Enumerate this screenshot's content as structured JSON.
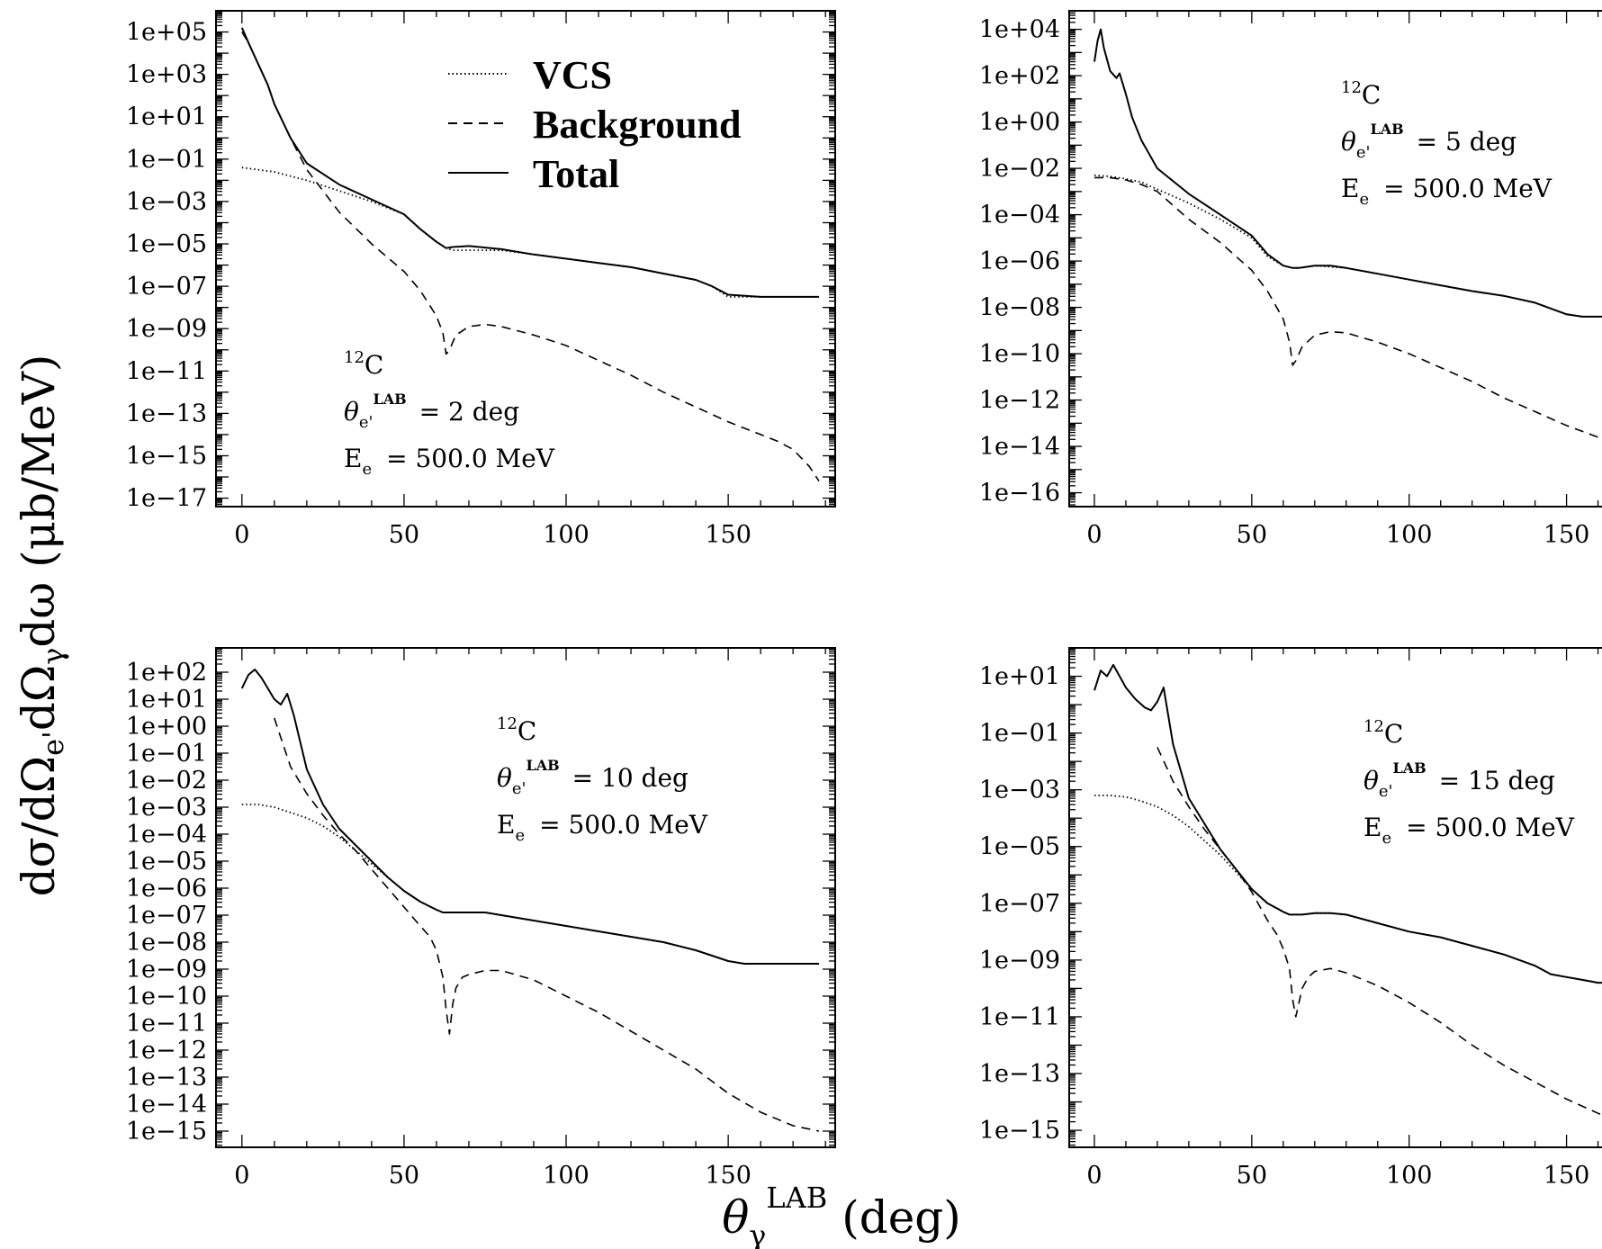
{
  "figure": {
    "ylabel_parts": [
      "dσ/dΩ",
      "e'",
      "dΩ",
      "γ",
      "dω (μb/MeV)"
    ],
    "xlabel_parts": [
      "θ",
      "γ",
      "LAB",
      " (deg)"
    ]
  },
  "legend": [
    {
      "label": "VCS",
      "style": "dotted"
    },
    {
      "label": "Background",
      "style": "dashed"
    },
    {
      "label": "Total",
      "style": "solid"
    }
  ],
  "chart_data": [
    {
      "type": "line",
      "title": "",
      "log_y": true,
      "xlim": [
        -8,
        183
      ],
      "xticks": [
        0,
        50,
        100,
        150
      ],
      "ylim_exp": [
        -17.4,
        6.0
      ],
      "ytick_exps": [
        5,
        3,
        1,
        -1,
        -3,
        -5,
        -7,
        -9,
        -11,
        -13,
        -15,
        -17
      ],
      "annotation": {
        "nucleus_mass": "12",
        "nucleus": "C",
        "theta_symbol": "θ",
        "theta_sub": "e'",
        "theta_sup": "LAB",
        "theta_value": "= 2 deg",
        "energy_symbol": "E",
        "energy_sub": "e",
        "energy_value": "= 500.0 MeV"
      },
      "series": [
        {
          "name": "VCS",
          "style": "dotted",
          "x": [
            0,
            5,
            10,
            15,
            20,
            30,
            40,
            50,
            55,
            60,
            63,
            65,
            70,
            80,
            90,
            100,
            110,
            120,
            130,
            140,
            145,
            150,
            160,
            170,
            175,
            178
          ],
          "y_exp": [
            -1.4,
            -1.5,
            -1.6,
            -1.8,
            -2.0,
            -2.5,
            -3.0,
            -3.6,
            -4.3,
            -4.9,
            -5.2,
            -5.3,
            -5.3,
            -5.3,
            -5.5,
            -5.7,
            -5.9,
            -6.1,
            -6.4,
            -6.7,
            -7.0,
            -7.5,
            -7.5,
            -7.5,
            -7.5,
            -7.5
          ]
        },
        {
          "name": "Background",
          "style": "dashed",
          "x": [
            0,
            2,
            5,
            8,
            10,
            15,
            20,
            25,
            30,
            40,
            50,
            55,
            60,
            62,
            63,
            64,
            66,
            70,
            75,
            80,
            90,
            100,
            110,
            120,
            130,
            140,
            150,
            160,
            165,
            170,
            175,
            178
          ],
          "y_exp": [
            5.0,
            4.5,
            3.5,
            2.5,
            1.6,
            0.0,
            -1.5,
            -2.5,
            -3.5,
            -5.0,
            -6.3,
            -7.2,
            -8.4,
            -9.2,
            -10.2,
            -10.0,
            -9.3,
            -8.9,
            -8.8,
            -8.9,
            -9.3,
            -9.8,
            -10.5,
            -11.2,
            -12.0,
            -12.7,
            -13.4,
            -14.0,
            -14.3,
            -14.7,
            -15.5,
            -16.2
          ]
        },
        {
          "name": "Total",
          "style": "solid",
          "x": [
            0,
            2,
            5,
            8,
            10,
            15,
            20,
            30,
            40,
            50,
            55,
            60,
            63,
            65,
            70,
            80,
            90,
            100,
            110,
            120,
            130,
            140,
            145,
            150,
            160,
            170,
            175,
            178
          ],
          "y_exp": [
            5.2,
            4.5,
            3.5,
            2.5,
            1.6,
            0.0,
            -1.2,
            -2.2,
            -2.9,
            -3.6,
            -4.3,
            -4.9,
            -5.2,
            -5.15,
            -5.1,
            -5.25,
            -5.5,
            -5.7,
            -5.9,
            -6.1,
            -6.4,
            -6.7,
            -7.0,
            -7.4,
            -7.5,
            -7.5,
            -7.5,
            -7.5
          ]
        }
      ]
    },
    {
      "type": "line",
      "title": "",
      "log_y": true,
      "xlim": [
        -8,
        183
      ],
      "xticks": [
        0,
        50,
        100,
        150
      ],
      "ylim_exp": [
        -16.6,
        4.8
      ],
      "ytick_exps": [
        4,
        2,
        0,
        -2,
        -4,
        -6,
        -8,
        -10,
        -12,
        -14,
        -16
      ],
      "annotation": {
        "nucleus_mass": "12",
        "nucleus": "C",
        "theta_symbol": "θ",
        "theta_sub": "e'",
        "theta_sup": "LAB",
        "theta_value": "= 5 deg",
        "energy_symbol": "E",
        "energy_sub": "e",
        "energy_value": "= 500.0 MeV"
      },
      "series": [
        {
          "name": "VCS",
          "style": "dotted",
          "x": [
            0,
            5,
            10,
            15,
            20,
            30,
            40,
            50,
            55,
            60,
            63,
            65,
            70,
            75,
            80,
            90,
            100,
            110,
            120,
            130,
            140,
            150,
            155,
            160,
            170,
            178
          ],
          "y_exp": [
            -2.3,
            -2.35,
            -2.45,
            -2.6,
            -2.9,
            -3.5,
            -4.2,
            -5.0,
            -5.8,
            -6.2,
            -6.3,
            -6.3,
            -6.2,
            -6.25,
            -6.3,
            -6.55,
            -6.8,
            -7.05,
            -7.3,
            -7.5,
            -7.8,
            -8.3,
            -8.4,
            -8.4,
            -8.4,
            -8.4
          ]
        },
        {
          "name": "Background",
          "style": "dashed",
          "x": [
            0,
            5,
            10,
            15,
            20,
            25,
            30,
            40,
            50,
            55,
            60,
            62,
            63,
            64,
            66,
            70,
            75,
            80,
            90,
            100,
            110,
            120,
            130,
            140,
            150,
            160,
            170,
            178
          ],
          "y_exp": [
            -2.4,
            -2.4,
            -2.5,
            -2.7,
            -3.0,
            -3.6,
            -4.2,
            -5.2,
            -6.4,
            -7.3,
            -8.5,
            -9.5,
            -10.5,
            -10.3,
            -9.7,
            -9.2,
            -9.05,
            -9.1,
            -9.5,
            -10.0,
            -10.6,
            -11.2,
            -11.9,
            -12.5,
            -13.1,
            -13.6,
            -14.3,
            -14.8
          ]
        },
        {
          "name": "Total",
          "style": "solid",
          "x": [
            0,
            1,
            2,
            3,
            5,
            7,
            8,
            10,
            12,
            15,
            20,
            30,
            40,
            50,
            55,
            60,
            63,
            65,
            70,
            75,
            80,
            90,
            100,
            110,
            120,
            130,
            140,
            150,
            155,
            160,
            170,
            178
          ],
          "y_exp": [
            2.6,
            3.5,
            4.0,
            3.2,
            2.2,
            1.9,
            2.1,
            1.2,
            0.2,
            -0.8,
            -2.0,
            -3.1,
            -4.0,
            -4.9,
            -5.7,
            -6.2,
            -6.3,
            -6.3,
            -6.2,
            -6.2,
            -6.3,
            -6.55,
            -6.8,
            -7.05,
            -7.3,
            -7.5,
            -7.8,
            -8.3,
            -8.4,
            -8.4,
            -8.4,
            -8.4
          ]
        }
      ]
    },
    {
      "type": "line",
      "title": "",
      "log_y": true,
      "xlim": [
        -8,
        183
      ],
      "xticks": [
        0,
        50,
        100,
        150
      ],
      "ylim_exp": [
        -15.6,
        2.9
      ],
      "ytick_exps": [
        2,
        1,
        0,
        -1,
        -2,
        -3,
        -4,
        -5,
        -6,
        -7,
        -8,
        -9,
        -10,
        -11,
        -12,
        -13,
        -14,
        -15
      ],
      "annotation": {
        "nucleus_mass": "12",
        "nucleus": "C",
        "theta_symbol": "θ",
        "theta_sub": "e'",
        "theta_sup": "LAB",
        "theta_value": "= 10 deg",
        "energy_symbol": "E",
        "energy_sub": "e",
        "energy_value": "= 500.0 MeV"
      },
      "series": [
        {
          "name": "VCS",
          "style": "dotted",
          "x": [
            0,
            5,
            10,
            15,
            20,
            25,
            30,
            35,
            40,
            45,
            50,
            55,
            60,
            62,
            64,
            66,
            70,
            75,
            80,
            90,
            100,
            110,
            120,
            130,
            140,
            145,
            150,
            155,
            160,
            170,
            178
          ],
          "y_exp": [
            -2.9,
            -2.9,
            -3.0,
            -3.2,
            -3.4,
            -3.7,
            -4.1,
            -4.6,
            -5.1,
            -5.6,
            -6.1,
            -6.5,
            -6.8,
            -6.9,
            -6.9,
            -6.9,
            -6.9,
            -6.9,
            -7.0,
            -7.2,
            -7.4,
            -7.6,
            -7.8,
            -8.0,
            -8.3,
            -8.5,
            -8.7,
            -8.8,
            -8.8,
            -8.8,
            -8.8
          ]
        },
        {
          "name": "Background",
          "style": "dashed",
          "x": [
            10,
            15,
            20,
            25,
            30,
            35,
            40,
            45,
            50,
            55,
            58,
            60,
            62,
            63,
            64,
            65,
            66,
            68,
            70,
            75,
            80,
            90,
            100,
            110,
            120,
            130,
            140,
            150,
            160,
            170,
            178
          ],
          "y_exp": [
            0.3,
            -1.5,
            -2.5,
            -3.3,
            -4.0,
            -4.6,
            -5.3,
            -6.0,
            -6.7,
            -7.4,
            -7.8,
            -8.3,
            -9.3,
            -10.5,
            -11.4,
            -10.3,
            -9.7,
            -9.3,
            -9.2,
            -9.05,
            -9.05,
            -9.4,
            -10.0,
            -10.6,
            -11.3,
            -12.0,
            -12.7,
            -13.6,
            -14.3,
            -14.8,
            -15.0
          ]
        },
        {
          "name": "Total",
          "style": "solid",
          "x": [
            0,
            2,
            4,
            6,
            8,
            10,
            12,
            14,
            16,
            18,
            20,
            25,
            30,
            35,
            40,
            45,
            50,
            55,
            60,
            62,
            64,
            66,
            70,
            75,
            80,
            90,
            100,
            110,
            120,
            130,
            140,
            145,
            150,
            155,
            160,
            170,
            178
          ],
          "y_exp": [
            1.4,
            1.9,
            2.1,
            1.8,
            1.4,
            1.0,
            0.8,
            1.2,
            0.4,
            -0.6,
            -1.6,
            -2.9,
            -3.8,
            -4.4,
            -5.0,
            -5.6,
            -6.1,
            -6.5,
            -6.8,
            -6.9,
            -6.9,
            -6.9,
            -6.9,
            -6.9,
            -7.0,
            -7.2,
            -7.4,
            -7.6,
            -7.8,
            -8.0,
            -8.3,
            -8.5,
            -8.7,
            -8.8,
            -8.8,
            -8.8,
            -8.8
          ]
        }
      ]
    },
    {
      "type": "line",
      "title": "",
      "log_y": true,
      "xlim": [
        -8,
        183
      ],
      "xticks": [
        0,
        50,
        100,
        150
      ],
      "ylim_exp": [
        -15.6,
        2.0
      ],
      "ytick_exps": [
        1,
        -1,
        -3,
        -5,
        -7,
        -9,
        -11,
        -13,
        -15
      ],
      "annotation": {
        "nucleus_mass": "12",
        "nucleus": "C",
        "theta_symbol": "θ",
        "theta_sub": "e'",
        "theta_sup": "LAB",
        "theta_value": "= 15 deg",
        "energy_symbol": "E",
        "energy_sub": "e",
        "energy_value": "= 500.0 MeV"
      },
      "series": [
        {
          "name": "VCS",
          "style": "dotted",
          "x": [
            0,
            5,
            10,
            15,
            20,
            25,
            30,
            35,
            40,
            45,
            50,
            55,
            60,
            62,
            64,
            66,
            70,
            75,
            80,
            90,
            100,
            110,
            120,
            130,
            140,
            145,
            150,
            155,
            160,
            170,
            178
          ],
          "y_exp": [
            -3.2,
            -3.2,
            -3.25,
            -3.4,
            -3.6,
            -3.9,
            -4.3,
            -4.8,
            -5.3,
            -5.9,
            -6.5,
            -7.0,
            -7.3,
            -7.4,
            -7.4,
            -7.4,
            -7.35,
            -7.35,
            -7.4,
            -7.7,
            -8.0,
            -8.2,
            -8.5,
            -8.8,
            -9.2,
            -9.5,
            -9.6,
            -9.7,
            -9.8,
            -9.8,
            -9.8
          ]
        },
        {
          "name": "Background",
          "style": "dashed",
          "x": [
            20,
            25,
            30,
            35,
            40,
            45,
            50,
            55,
            58,
            60,
            62,
            63,
            64,
            65,
            66,
            68,
            70,
            75,
            80,
            90,
            100,
            110,
            120,
            130,
            140,
            150,
            160,
            170,
            178
          ],
          "y_exp": [
            -1.5,
            -2.7,
            -3.6,
            -4.4,
            -5.1,
            -5.8,
            -6.6,
            -7.6,
            -8.1,
            -8.6,
            -9.3,
            -10.4,
            -11.0,
            -10.5,
            -10.0,
            -9.6,
            -9.4,
            -9.3,
            -9.45,
            -9.9,
            -10.5,
            -11.2,
            -12.0,
            -12.7,
            -13.3,
            -13.9,
            -14.4,
            -14.8,
            -15.0
          ]
        },
        {
          "name": "Total",
          "style": "solid",
          "x": [
            0,
            2,
            4,
            6,
            8,
            10,
            13,
            16,
            18,
            20,
            22,
            25,
            30,
            35,
            40,
            45,
            50,
            55,
            60,
            62,
            64,
            66,
            70,
            75,
            80,
            90,
            100,
            110,
            120,
            130,
            140,
            145,
            150,
            155,
            160,
            170,
            178
          ],
          "y_exp": [
            0.5,
            1.2,
            1.0,
            1.4,
            1.0,
            0.6,
            0.2,
            -0.1,
            -0.2,
            0.1,
            0.6,
            -1.4,
            -3.3,
            -4.2,
            -5.1,
            -5.8,
            -6.5,
            -7.0,
            -7.3,
            -7.4,
            -7.4,
            -7.4,
            -7.35,
            -7.35,
            -7.4,
            -7.7,
            -8.0,
            -8.2,
            -8.5,
            -8.8,
            -9.2,
            -9.5,
            -9.6,
            -9.7,
            -9.8,
            -9.8,
            -9.8
          ]
        }
      ]
    }
  ]
}
